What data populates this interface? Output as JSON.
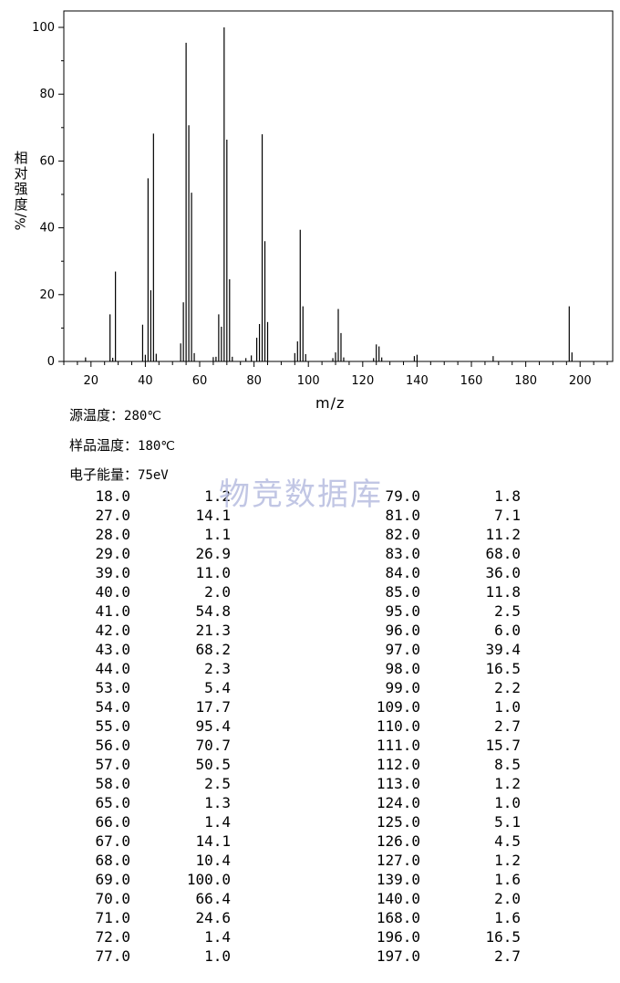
{
  "chart_data": {
    "type": "bar",
    "xlabel": "m/z",
    "ylabel_chars": [
      "相",
      "对",
      "强",
      "度"
    ],
    "ylabel_unit": "%/",
    "xlim": [
      10,
      212
    ],
    "ylim": [
      0,
      100
    ],
    "x_ticks": [
      "20",
      "40",
      "60",
      "80",
      "100",
      "120",
      "140",
      "160",
      "180",
      "200"
    ],
    "y_ticks": [
      "0",
      "20",
      "40",
      "60",
      "80",
      "100"
    ],
    "peaks": [
      [
        18,
        1.2
      ],
      [
        27,
        14.1
      ],
      [
        28,
        1.1
      ],
      [
        29,
        26.9
      ],
      [
        39,
        11.0
      ],
      [
        40,
        2.0
      ],
      [
        41,
        54.8
      ],
      [
        42,
        21.3
      ],
      [
        43,
        68.2
      ],
      [
        44,
        2.3
      ],
      [
        53,
        5.4
      ],
      [
        54,
        17.7
      ],
      [
        55,
        95.4
      ],
      [
        56,
        70.7
      ],
      [
        57,
        50.5
      ],
      [
        58,
        2.5
      ],
      [
        65,
        1.3
      ],
      [
        66,
        1.4
      ],
      [
        67,
        14.1
      ],
      [
        68,
        10.4
      ],
      [
        69,
        100.0
      ],
      [
        70,
        66.4
      ],
      [
        71,
        24.6
      ],
      [
        72,
        1.4
      ],
      [
        77,
        1.0
      ],
      [
        79,
        1.8
      ],
      [
        81,
        7.1
      ],
      [
        82,
        11.2
      ],
      [
        83,
        68.0
      ],
      [
        84,
        36.0
      ],
      [
        85,
        11.8
      ],
      [
        95,
        2.5
      ],
      [
        96,
        6.0
      ],
      [
        97,
        39.4
      ],
      [
        98,
        16.5
      ],
      [
        99,
        2.2
      ],
      [
        109,
        1.0
      ],
      [
        110,
        2.7
      ],
      [
        111,
        15.7
      ],
      [
        112,
        8.5
      ],
      [
        113,
        1.2
      ],
      [
        124,
        1.0
      ],
      [
        125,
        5.1
      ],
      [
        126,
        4.5
      ],
      [
        127,
        1.2
      ],
      [
        139,
        1.6
      ],
      [
        140,
        2.0
      ],
      [
        168,
        1.6
      ],
      [
        196,
        16.5
      ],
      [
        197,
        2.7
      ]
    ]
  },
  "info": {
    "source_temp_label": "源温度：",
    "source_temp_value": "280℃",
    "sample_temp_label": "样品温度：",
    "sample_temp_value": "180℃",
    "electron_energy_label": "电子能量：",
    "electron_energy_value": "75eV"
  },
  "watermark": "物竞数据库",
  "table_left": [
    [
      "18.0",
      "1.2"
    ],
    [
      "27.0",
      "14.1"
    ],
    [
      "28.0",
      "1.1"
    ],
    [
      "29.0",
      "26.9"
    ],
    [
      "39.0",
      "11.0"
    ],
    [
      "40.0",
      "2.0"
    ],
    [
      "41.0",
      "54.8"
    ],
    [
      "42.0",
      "21.3"
    ],
    [
      "43.0",
      "68.2"
    ],
    [
      "44.0",
      "2.3"
    ],
    [
      "53.0",
      "5.4"
    ],
    [
      "54.0",
      "17.7"
    ],
    [
      "55.0",
      "95.4"
    ],
    [
      "56.0",
      "70.7"
    ],
    [
      "57.0",
      "50.5"
    ],
    [
      "58.0",
      "2.5"
    ],
    [
      "65.0",
      "1.3"
    ],
    [
      "66.0",
      "1.4"
    ],
    [
      "67.0",
      "14.1"
    ],
    [
      "68.0",
      "10.4"
    ],
    [
      "69.0",
      "100.0"
    ],
    [
      "70.0",
      "66.4"
    ],
    [
      "71.0",
      "24.6"
    ],
    [
      "72.0",
      "1.4"
    ],
    [
      "77.0",
      "1.0"
    ]
  ],
  "table_right": [
    [
      "79.0",
      "1.8"
    ],
    [
      "81.0",
      "7.1"
    ],
    [
      "82.0",
      "11.2"
    ],
    [
      "83.0",
      "68.0"
    ],
    [
      "84.0",
      "36.0"
    ],
    [
      "85.0",
      "11.8"
    ],
    [
      "95.0",
      "2.5"
    ],
    [
      "96.0",
      "6.0"
    ],
    [
      "97.0",
      "39.4"
    ],
    [
      "98.0",
      "16.5"
    ],
    [
      "99.0",
      "2.2"
    ],
    [
      "109.0",
      "1.0"
    ],
    [
      "110.0",
      "2.7"
    ],
    [
      "111.0",
      "15.7"
    ],
    [
      "112.0",
      "8.5"
    ],
    [
      "113.0",
      "1.2"
    ],
    [
      "124.0",
      "1.0"
    ],
    [
      "125.0",
      "5.1"
    ],
    [
      "126.0",
      "4.5"
    ],
    [
      "127.0",
      "1.2"
    ],
    [
      "139.0",
      "1.6"
    ],
    [
      "140.0",
      "2.0"
    ],
    [
      "168.0",
      "1.6"
    ],
    [
      "196.0",
      "16.5"
    ],
    [
      "197.0",
      "2.7"
    ]
  ]
}
